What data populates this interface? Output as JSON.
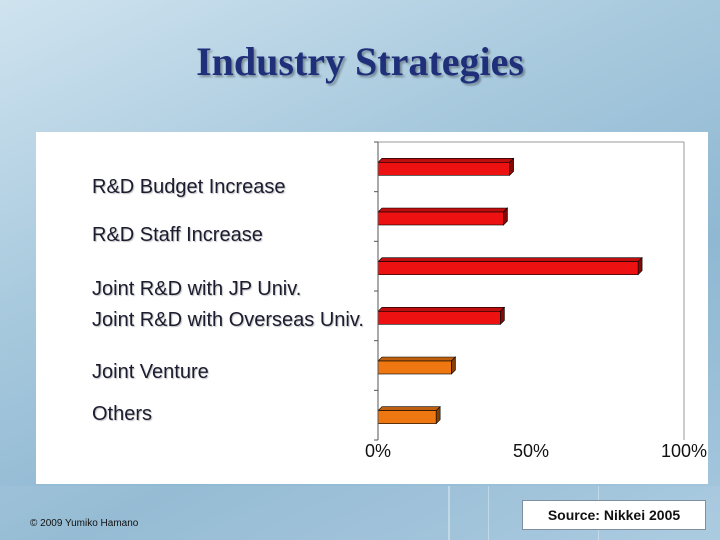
{
  "slide": {
    "title": "Industry Strategies",
    "source": "Source: Nikkei 2005",
    "copyright": "© 2009 Yumiko Hamano"
  },
  "chart_data": {
    "type": "bar",
    "orientation": "horizontal",
    "categories": [
      "R&D Budget Increase",
      "R&D Staff Increase",
      "Joint R&D with JP  Univ.",
      "Joint R&D with Overseas Univ.",
      "Joint Venture",
      "Others"
    ],
    "values": [
      43,
      41,
      85,
      40,
      24,
      19
    ],
    "bar_colors": [
      "#ee1111",
      "#ee1111",
      "#ee1111",
      "#ee1111",
      "#ee7711",
      "#ee7711"
    ],
    "xticks": [
      "0%",
      "50%",
      "100%"
    ],
    "xlim": [
      0,
      100
    ],
    "grid": false,
    "legend": "none"
  }
}
